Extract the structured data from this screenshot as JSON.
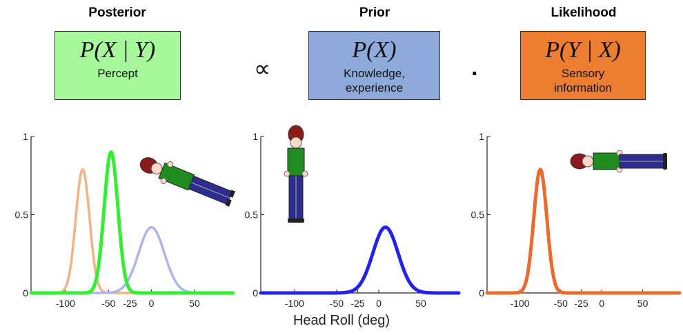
{
  "headers": {
    "posterior": "Posterior",
    "prior": "Prior",
    "likelihood": "Likelihood"
  },
  "boxes": {
    "posterior": {
      "formula": "P(X | Y)",
      "caption": "Percept",
      "color": "#a7f89a"
    },
    "prior": {
      "formula": "P(X)",
      "caption": "Knowledge, experience",
      "color": "#8eaadb"
    },
    "likelihood": {
      "formula": "P(Y | X)",
      "caption": "Sensory information",
      "color": "#ed7d31"
    }
  },
  "operators": {
    "proportional": "∝",
    "dot": "·"
  },
  "chart_data": [
    {
      "type": "line",
      "panel": "posterior",
      "xticks": [
        -100,
        -50,
        -25,
        0,
        50
      ],
      "yticks": [
        0,
        0.5,
        1
      ],
      "xlim": [
        -140,
        95
      ],
      "ylim": [
        0,
        1
      ],
      "series": [
        {
          "color": "#f4b183",
          "mean": -80,
          "sd": 8,
          "peak": 0.79
        },
        {
          "color": "#aab4f0",
          "mean": 0,
          "sd": 15,
          "peak": 0.42
        },
        {
          "color": "#33ee33",
          "mean": -47,
          "sd": 8,
          "peak": 0.9
        }
      ]
    },
    {
      "type": "line",
      "panel": "prior",
      "xticks": [
        -100,
        -50,
        -25,
        0,
        50
      ],
      "yticks": [
        0,
        0.5,
        1
      ],
      "xlim": [
        -140,
        95
      ],
      "ylim": [
        0,
        1
      ],
      "series": [
        {
          "color": "#2222ee",
          "mean": 8,
          "sd": 15,
          "peak": 0.42
        }
      ]
    },
    {
      "type": "line",
      "panel": "likelihood",
      "xticks": [
        -100,
        -50,
        -25,
        0,
        50
      ],
      "yticks": [
        0,
        0.5,
        1
      ],
      "xlim": [
        -140,
        95
      ],
      "ylim": [
        0,
        1
      ],
      "series": [
        {
          "color": "#ed6a2e",
          "mean": -75,
          "sd": 8,
          "peak": 0.79
        }
      ]
    }
  ],
  "xlabel": "Head Roll (deg)"
}
